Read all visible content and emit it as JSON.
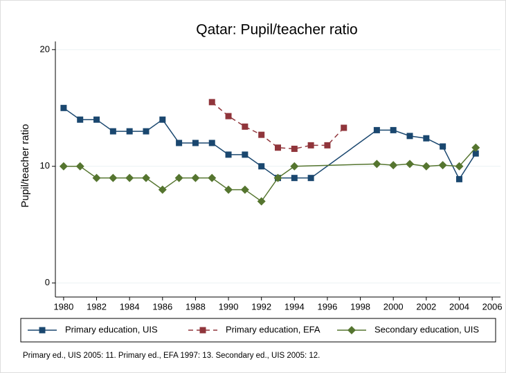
{
  "chart_data": {
    "type": "line",
    "title": "Qatar: Pupil/teacher ratio",
    "y_label": "Pupil/teacher ratio",
    "note": "Primary ed., UIS 2005: 11. Primary ed., EFA 1997: 13. Secondary ed., UIS 2005: 12.",
    "xlim": [
      1979.5,
      2006.5
    ],
    "xticks": [
      1980,
      1982,
      1984,
      1986,
      1988,
      1990,
      1992,
      1994,
      1996,
      1998,
      2000,
      2002,
      2004,
      2006
    ],
    "ylim": [
      -1.2,
      20.7
    ],
    "yticks": [
      0,
      10,
      20
    ],
    "grid": true,
    "series": [
      {
        "name": "Primary education, UIS",
        "color": "#1a476f",
        "marker": "square",
        "dash": false,
        "x": [
          1980,
          1981,
          1982,
          1983,
          1984,
          1985,
          1986,
          1987,
          1988,
          1989,
          1990,
          1991,
          1992,
          1993,
          1994,
          1995,
          1999,
          2000,
          2001,
          2002,
          2003,
          2004,
          2005
        ],
        "values": [
          15,
          14,
          14,
          13,
          13,
          13,
          14,
          12,
          12,
          12,
          11,
          11,
          10,
          9,
          9,
          9,
          13.1,
          13.1,
          12.6,
          12.4,
          11.7,
          8.9,
          11.1
        ]
      },
      {
        "name": "Primary education, EFA",
        "color": "#90353b",
        "marker": "square",
        "dash": true,
        "x": [
          1989,
          1990,
          1991,
          1992,
          1993,
          1994,
          1995,
          1996,
          1997
        ],
        "values": [
          15.5,
          14.3,
          13.4,
          12.7,
          11.6,
          11.5,
          11.8,
          11.8,
          13.3
        ]
      },
      {
        "name": "Secondary education, UIS",
        "color": "#55752f",
        "marker": "diamond",
        "dash": false,
        "x": [
          1980,
          1981,
          1982,
          1983,
          1984,
          1985,
          1986,
          1987,
          1988,
          1989,
          1990,
          1991,
          1992,
          1993,
          1994,
          1999,
          2000,
          2001,
          2002,
          2003,
          2004,
          2005
        ],
        "values": [
          10,
          10,
          9,
          9,
          9,
          9,
          8,
          9,
          9,
          9,
          8,
          8,
          7,
          9,
          10,
          10.2,
          10.1,
          10.2,
          10,
          10.1,
          10,
          11.6
        ]
      }
    ]
  }
}
